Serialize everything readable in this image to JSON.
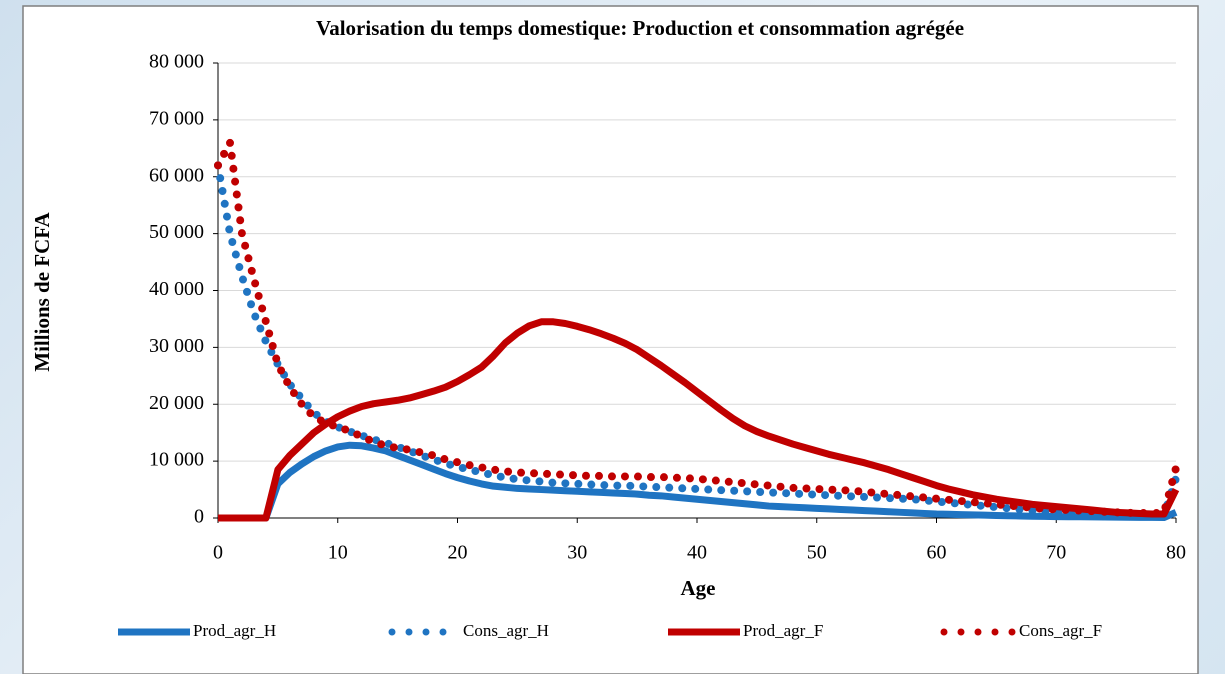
{
  "chart_data": {
    "type": "line",
    "title": "Valorisation du temps domestique: Production et consommation agrégée",
    "x_label": "Age",
    "y_label": "Millions de FCFA",
    "x": [
      0,
      1,
      2,
      3,
      4,
      5,
      6,
      7,
      8,
      9,
      10,
      11,
      12,
      13,
      14,
      15,
      16,
      17,
      18,
      19,
      20,
      21,
      22,
      23,
      24,
      25,
      26,
      27,
      28,
      29,
      30,
      31,
      32,
      33,
      34,
      35,
      36,
      37,
      38,
      39,
      40,
      41,
      42,
      43,
      44,
      45,
      46,
      47,
      48,
      49,
      50,
      51,
      52,
      53,
      54,
      55,
      56,
      57,
      58,
      59,
      60,
      61,
      62,
      63,
      64,
      65,
      66,
      67,
      68,
      69,
      70,
      71,
      72,
      73,
      74,
      75,
      76,
      77,
      78,
      79,
      80
    ],
    "series": [
      {
        "name": "Prod_agr_H",
        "color": "#1f74c2",
        "style": "solid",
        "values": [
          0,
          0,
          0,
          0,
          0,
          6000,
          8000,
          9500,
          10800,
          11800,
          12500,
          12800,
          12700,
          12300,
          11800,
          11000,
          10200,
          9400,
          8600,
          7800,
          7100,
          6500,
          6000,
          5600,
          5400,
          5200,
          5100,
          5000,
          4900,
          4800,
          4700,
          4600,
          4500,
          4400,
          4300,
          4200,
          4000,
          3900,
          3700,
          3500,
          3300,
          3100,
          2900,
          2700,
          2500,
          2300,
          2100,
          2000,
          1900,
          1800,
          1700,
          1600,
          1500,
          1400,
          1300,
          1200,
          1100,
          1000,
          900,
          800,
          700,
          650,
          600,
          550,
          500,
          450,
          400,
          350,
          300,
          280,
          250,
          230,
          210,
          190,
          170,
          150,
          130,
          110,
          100,
          90,
          1000
        ]
      },
      {
        "name": "Cons_agr_H",
        "color": "#1f74c2",
        "style": "dotted",
        "values": [
          62000,
          50000,
          42500,
          36000,
          31000,
          27000,
          23500,
          21000,
          18500,
          17000,
          16000,
          15200,
          14500,
          13800,
          13200,
          12500,
          11800,
          11000,
          10300,
          9600,
          9000,
          8500,
          8000,
          7500,
          7100,
          6800,
          6600,
          6400,
          6200,
          6100,
          6000,
          5900,
          5800,
          5700,
          5700,
          5600,
          5500,
          5400,
          5300,
          5200,
          5100,
          5000,
          4900,
          4800,
          4700,
          4600,
          4500,
          4400,
          4300,
          4200,
          4100,
          4000,
          3900,
          3800,
          3700,
          3600,
          3500,
          3400,
          3300,
          3100,
          2900,
          2700,
          2500,
          2300,
          2100,
          1900,
          1700,
          1500,
          1300,
          1100,
          900,
          800,
          700,
          600,
          500,
          450,
          400,
          350,
          300,
          500,
          7000
        ]
      },
      {
        "name": "Prod_agr_F",
        "color": "#c00000",
        "style": "solid",
        "values": [
          0,
          0,
          0,
          0,
          0,
          8500,
          11000,
          13000,
          15000,
          16500,
          17800,
          18800,
          19600,
          20100,
          20400,
          20700,
          21100,
          21700,
          22300,
          23000,
          24000,
          25200,
          26500,
          28500,
          30800,
          32500,
          33800,
          34500,
          34500,
          34200,
          33700,
          33100,
          32400,
          31600,
          30700,
          29600,
          28200,
          26800,
          25300,
          23800,
          22200,
          20600,
          19000,
          17500,
          16200,
          15200,
          14400,
          13700,
          13000,
          12400,
          11800,
          11200,
          10700,
          10200,
          9700,
          9100,
          8500,
          7800,
          7100,
          6400,
          5700,
          5100,
          4600,
          4100,
          3700,
          3300,
          3000,
          2700,
          2400,
          2200,
          2000,
          1800,
          1600,
          1400,
          1200,
          1000,
          900,
          800,
          700,
          700,
          5000
        ]
      },
      {
        "name": "Cons_agr_F",
        "color": "#c00000",
        "style": "dotted",
        "values": [
          62000,
          66000,
          50000,
          42000,
          34500,
          27000,
          23000,
          20000,
          17800,
          16700,
          16000,
          15300,
          14300,
          13400,
          12700,
          12300,
          12000,
          11500,
          11000,
          10300,
          9800,
          9300,
          8900,
          8500,
          8200,
          8000,
          7900,
          7800,
          7700,
          7600,
          7500,
          7400,
          7400,
          7300,
          7300,
          7300,
          7200,
          7200,
          7100,
          7000,
          6900,
          6700,
          6500,
          6300,
          6100,
          5900,
          5700,
          5500,
          5300,
          5200,
          5100,
          5000,
          4900,
          4800,
          4600,
          4400,
          4200,
          4000,
          3800,
          3600,
          3400,
          3200,
          3000,
          2800,
          2600,
          2400,
          2200,
          2000,
          1800,
          1600,
          1500,
          1400,
          1300,
          1200,
          1100,
          1000,
          900,
          900,
          800,
          1000,
          8800
        ]
      }
    ],
    "xlim": [
      0,
      80
    ],
    "xticks": [
      0,
      10,
      20,
      30,
      40,
      50,
      60,
      70,
      80
    ],
    "ylim": [
      0,
      80000
    ],
    "yticks": [
      0,
      {
        "value": 10000,
        "label": "10 000"
      },
      {
        "value": 20000,
        "label": "20 000"
      },
      {
        "value": 30000,
        "label": "30 000"
      },
      {
        "value": 40000,
        "label": "40 000"
      },
      {
        "value": 50000,
        "label": "50 000"
      },
      {
        "value": 60000,
        "label": "60 000"
      },
      {
        "value": 70000,
        "label": "70 000"
      },
      {
        "value": 80000,
        "label": "80 000"
      }
    ],
    "grid": true,
    "legend": "bottom"
  }
}
